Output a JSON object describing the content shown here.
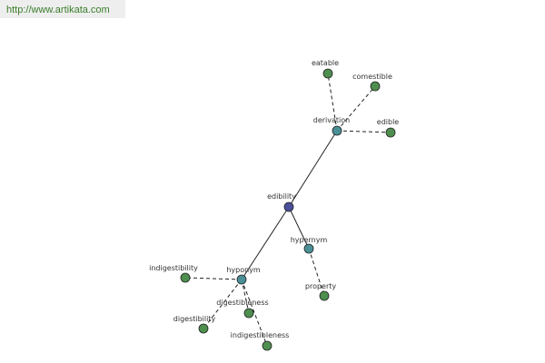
{
  "header": {
    "url": "http://www.artikata.com"
  },
  "nodes": [
    {
      "label": "edibility"
    },
    {
      "label": "derivation"
    },
    {
      "label": "eatable"
    },
    {
      "label": "comestible"
    },
    {
      "label": "edible"
    },
    {
      "label": "hypernym"
    },
    {
      "label": "property"
    },
    {
      "label": "hyponym"
    },
    {
      "label": "indigestibility"
    },
    {
      "label": "digestibleness"
    },
    {
      "label": "digestibility"
    },
    {
      "label": "indigestibleness"
    }
  ]
}
